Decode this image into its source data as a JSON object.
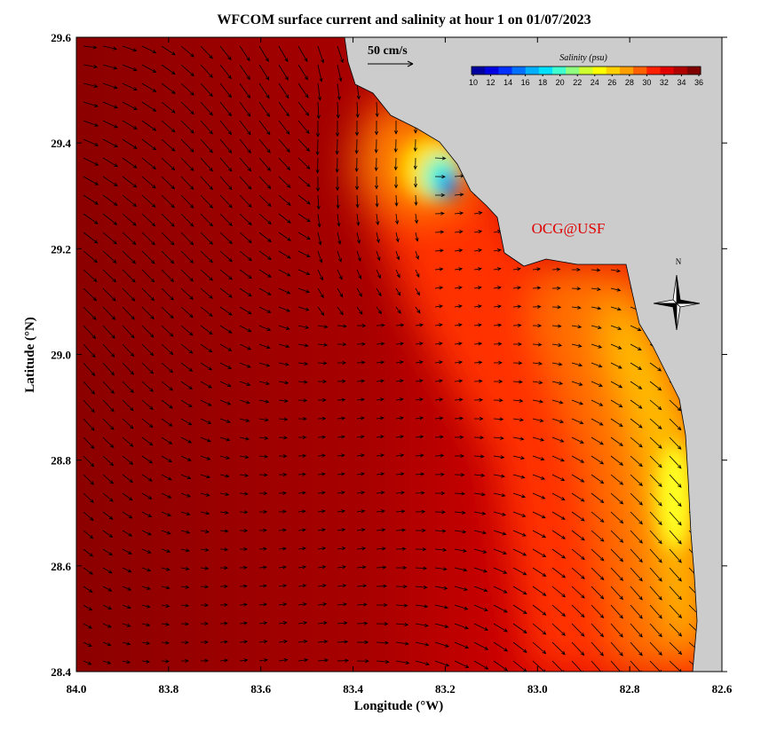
{
  "chart_data": {
    "type": "map",
    "title": "WFCOM surface current and salinity at hour 1 on 01/07/2023",
    "xlabel": "Longitude (°W)",
    "ylabel": "Latitude (°N)",
    "xlim": [
      84,
      82.6
    ],
    "xticks": [
      {
        "value": 84,
        "label": "84.0"
      },
      83.8,
      83.6,
      83.4,
      83.2,
      {
        "value": 83,
        "label": "83.0"
      },
      82.8,
      82.6
    ],
    "ylim": [
      28.4,
      29.6
    ],
    "yticks": [
      28.4,
      28.6,
      28.8,
      {
        "value": 29,
        "label": "29.0"
      },
      29.2,
      29.4,
      29.6
    ],
    "scale_label": "50 cm/s",
    "colorbar": {
      "title": "Salinity (psu)",
      "ticks": [
        10,
        12,
        14,
        16,
        18,
        20,
        22,
        24,
        26,
        28,
        30,
        32,
        34,
        36
      ],
      "colors": [
        "#0000a0",
        "#0000e0",
        "#0030ff",
        "#0070ff",
        "#00b0ff",
        "#00e0ff",
        "#40ffd0",
        "#90ff80",
        "#d0ff30",
        "#ffff00",
        "#ffd000",
        "#ffa000",
        "#ff6000",
        "#ff2000",
        "#e00000",
        "#b00000",
        "#800000"
      ]
    },
    "annotation": "OCG@USF",
    "compass": "N"
  }
}
